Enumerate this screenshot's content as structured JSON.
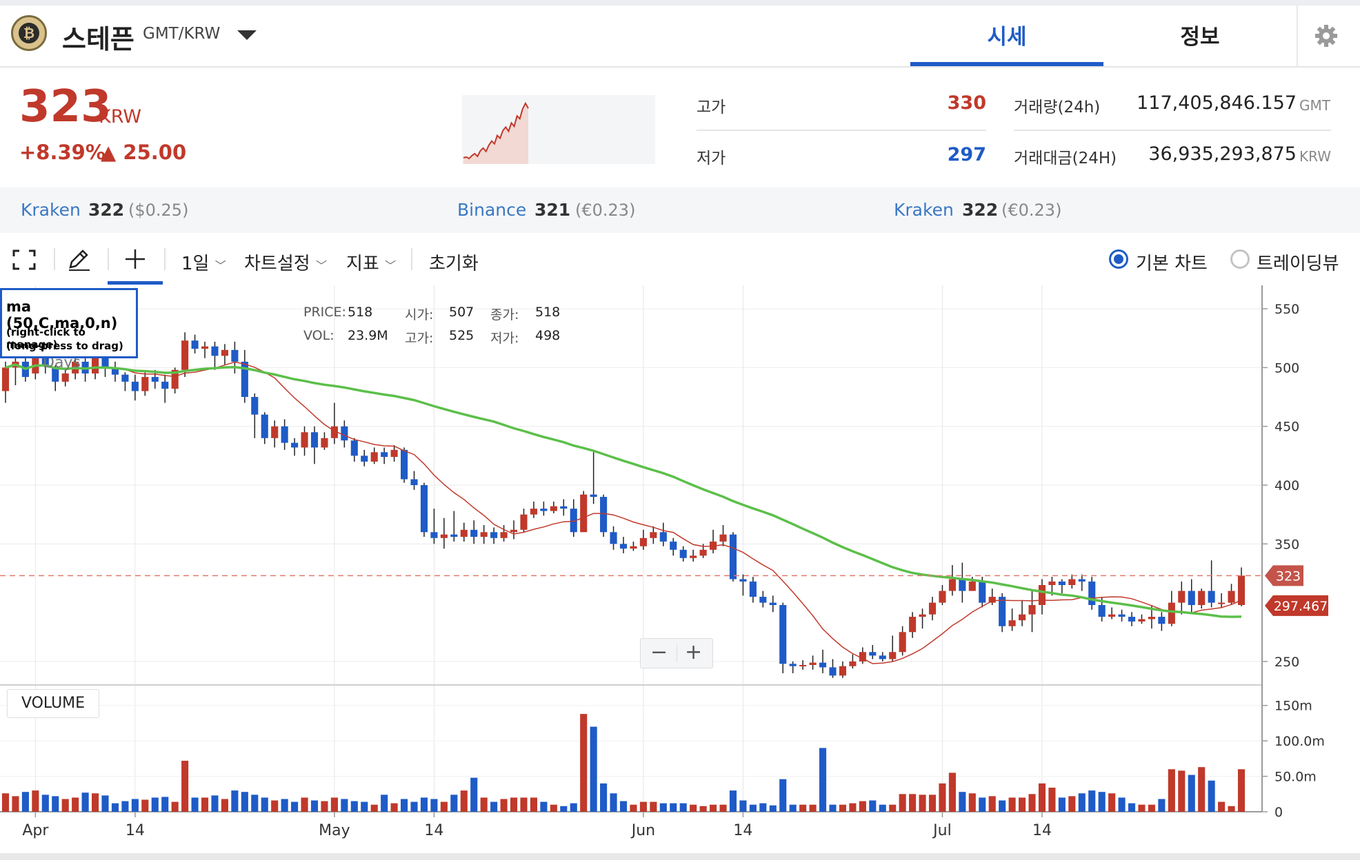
{
  "header": {
    "coin_symbol": "₿",
    "coin_name": "스테픈",
    "pair": "GMT/KRW",
    "tabs": [
      {
        "label": "시세",
        "active": true
      },
      {
        "label": "정보",
        "active": false
      }
    ]
  },
  "price": {
    "value": "323",
    "unit": "KRW",
    "change_pct": "+8.39%",
    "change_abs": "▲ 25.00",
    "mini_series": [
      252,
      253,
      251,
      255,
      258,
      254,
      262,
      266,
      261,
      270,
      276,
      272,
      284,
      280,
      291,
      296,
      290,
      302,
      297,
      312,
      308,
      322,
      330,
      323
    ]
  },
  "stats": {
    "high_label": "고가",
    "high": "330",
    "low_label": "저가",
    "low": "297",
    "volume_label": "거래량(24h)",
    "volume": "117,405,846.157",
    "volume_unit": "GMT",
    "amount_label": "거래대금(24H)",
    "amount": "36,935,293,875",
    "amount_unit": "KRW"
  },
  "exchanges": [
    {
      "name": "Kraken",
      "price": "322",
      "sub": "($0.25)"
    },
    {
      "name": "Binance",
      "price": "321",
      "sub": "(€0.23)"
    },
    {
      "name": "Kraken",
      "price": "322",
      "sub": "(€0.23)"
    }
  ],
  "toolbar": {
    "interval": "1일",
    "chart_settings": "차트설정",
    "indicators": "지표",
    "reset": "초기화",
    "radio_basic": "기본 차트",
    "radio_tv": "트레이딩뷰"
  },
  "tooltip": {
    "title": "ma (50,C,ma,0,n)",
    "line1": "(right-click to manage)",
    "line2": "(long-press to drag)",
    "behind": "Days"
  },
  "ohlc": {
    "price_label": "PRICE:",
    "price": "518",
    "open_label": "시가:",
    "open": "507",
    "close_label": "종가:",
    "close": "518",
    "vol_label": "VOL:",
    "vol": "23.9M",
    "high_label": "고가:",
    "high": "525",
    "low_label": "저가:",
    "low": "498"
  },
  "volume_label": "VOLUME",
  "colors": {
    "up": "#c0392b",
    "down": "#1f5bc7",
    "ma_short": "#c0392b",
    "ma_long": "#5cbf4a",
    "accent": "#1f5bc7"
  },
  "chart_data": {
    "type": "candlestick",
    "x_label_list": [
      "Apr",
      "14",
      "May",
      "14",
      "Jun",
      "14",
      "Jul",
      "14"
    ],
    "x_tick_index": [
      3,
      13,
      33,
      43,
      64,
      74,
      94,
      104
    ],
    "price_ticks": [
      550,
      500,
      450,
      400,
      350,
      250
    ],
    "ylim": [
      230,
      570
    ],
    "volume_ticks": [
      "150m",
      "100.0m",
      "50.0m",
      "0"
    ],
    "volume_tick_values": [
      150,
      100,
      50,
      0
    ],
    "volume_ylim": [
      0,
      175
    ],
    "last_price": 323,
    "last_price_label": "323",
    "ma_value": 297.467,
    "ma_value_label": "297.467",
    "candles": [
      [
        480,
        500,
        505,
        470,
        26
      ],
      [
        500,
        505,
        512,
        485,
        22
      ],
      [
        505,
        492,
        510,
        488,
        28
      ],
      [
        495,
        510,
        515,
        490,
        30
      ],
      [
        510,
        502,
        515,
        495,
        24
      ],
      [
        500,
        488,
        502,
        480,
        22
      ],
      [
        488,
        495,
        500,
        484,
        18
      ],
      [
        495,
        505,
        510,
        490,
        20
      ],
      [
        505,
        495,
        512,
        488,
        27
      ],
      [
        495,
        508,
        512,
        490,
        26
      ],
      [
        508,
        500,
        512,
        492,
        23
      ],
      [
        500,
        494,
        505,
        488,
        12
      ],
      [
        494,
        488,
        496,
        480,
        15
      ],
      [
        488,
        480,
        494,
        472,
        18
      ],
      [
        480,
        492,
        496,
        476,
        17
      ],
      [
        492,
        488,
        498,
        482,
        20
      ],
      [
        488,
        482,
        494,
        470,
        21
      ],
      [
        482,
        498,
        500,
        478,
        14
      ],
      [
        498,
        523,
        530,
        492,
        72
      ],
      [
        523,
        516,
        528,
        512,
        20
      ],
      [
        516,
        518,
        522,
        508,
        20
      ],
      [
        518,
        510,
        522,
        498,
        23
      ],
      [
        510,
        515,
        520,
        502,
        18
      ],
      [
        515,
        505,
        522,
        495,
        30
      ],
      [
        505,
        475,
        515,
        470,
        28
      ],
      [
        475,
        460,
        478,
        440,
        24
      ],
      [
        460,
        440,
        462,
        435,
        20
      ],
      [
        440,
        450,
        455,
        432,
        16
      ],
      [
        450,
        436,
        456,
        430,
        18
      ],
      [
        436,
        432,
        440,
        425,
        14
      ],
      [
        432,
        445,
        450,
        425,
        20
      ],
      [
        445,
        432,
        450,
        418,
        16
      ],
      [
        432,
        440,
        445,
        430,
        15
      ],
      [
        440,
        450,
        470,
        435,
        20
      ],
      [
        450,
        438,
        455,
        432,
        18
      ],
      [
        438,
        425,
        440,
        420,
        15
      ],
      [
        425,
        420,
        430,
        416,
        14
      ],
      [
        420,
        428,
        432,
        418,
        10
      ],
      [
        428,
        424,
        432,
        418,
        24
      ],
      [
        424,
        430,
        434,
        420,
        12
      ],
      [
        430,
        405,
        432,
        402,
        18
      ],
      [
        405,
        400,
        412,
        396,
        14
      ],
      [
        400,
        360,
        402,
        356,
        20
      ],
      [
        360,
        355,
        380,
        350,
        18
      ],
      [
        355,
        358,
        372,
        346,
        14
      ],
      [
        358,
        356,
        378,
        352,
        24
      ],
      [
        356,
        362,
        368,
        352,
        30
      ],
      [
        362,
        356,
        370,
        350,
        48
      ],
      [
        356,
        360,
        366,
        350,
        20
      ],
      [
        360,
        355,
        364,
        350,
        14
      ],
      [
        355,
        360,
        366,
        352,
        18
      ],
      [
        360,
        362,
        370,
        354,
        20
      ],
      [
        362,
        375,
        380,
        360,
        20
      ],
      [
        375,
        380,
        386,
        372,
        20
      ],
      [
        380,
        378,
        386,
        374,
        14
      ],
      [
        378,
        382,
        386,
        376,
        10
      ],
      [
        382,
        380,
        388,
        374,
        8
      ],
      [
        380,
        360,
        388,
        356,
        12
      ],
      [
        360,
        392,
        395,
        362,
        138
      ],
      [
        392,
        390,
        428,
        384,
        120
      ],
      [
        390,
        360,
        392,
        356,
        40
      ],
      [
        360,
        350,
        365,
        345,
        26
      ],
      [
        350,
        346,
        356,
        342,
        15
      ],
      [
        346,
        348,
        352,
        344,
        10
      ],
      [
        348,
        355,
        362,
        345,
        14
      ],
      [
        355,
        360,
        365,
        350,
        14
      ],
      [
        360,
        352,
        368,
        348,
        12
      ],
      [
        352,
        345,
        355,
        340,
        12
      ],
      [
        345,
        338,
        348,
        335,
        12
      ],
      [
        338,
        340,
        345,
        335,
        10
      ],
      [
        340,
        345,
        350,
        338,
        8
      ],
      [
        345,
        352,
        362,
        342,
        10
      ],
      [
        352,
        358,
        366,
        348,
        10
      ],
      [
        358,
        320,
        360,
        318,
        30
      ],
      [
        320,
        318,
        324,
        306,
        16
      ],
      [
        318,
        305,
        322,
        300,
        10
      ],
      [
        305,
        300,
        310,
        296,
        12
      ],
      [
        300,
        298,
        306,
        292,
        9
      ],
      [
        298,
        248,
        300,
        240,
        46
      ],
      [
        248,
        246,
        250,
        240,
        10
      ],
      [
        246,
        247,
        251,
        243,
        10
      ],
      [
        247,
        249,
        255,
        243,
        10
      ],
      [
        249,
        245,
        260,
        240,
        90
      ],
      [
        245,
        238,
        252,
        236,
        10
      ],
      [
        238,
        246,
        250,
        236,
        10
      ],
      [
        246,
        250,
        256,
        244,
        12
      ],
      [
        250,
        258,
        262,
        248,
        15
      ],
      [
        258,
        255,
        264,
        252,
        16
      ],
      [
        255,
        252,
        258,
        250,
        10
      ],
      [
        252,
        258,
        272,
        250,
        10
      ],
      [
        258,
        275,
        280,
        255,
        25
      ],
      [
        275,
        288,
        292,
        270,
        25
      ],
      [
        288,
        290,
        295,
        278,
        24
      ],
      [
        290,
        300,
        305,
        285,
        24
      ],
      [
        300,
        310,
        315,
        298,
        40
      ],
      [
        310,
        320,
        332,
        306,
        55
      ],
      [
        320,
        310,
        334,
        300,
        28
      ],
      [
        310,
        318,
        322,
        310,
        26
      ],
      [
        318,
        300,
        322,
        296,
        20
      ],
      [
        300,
        305,
        312,
        298,
        22
      ],
      [
        305,
        280,
        308,
        275,
        16
      ],
      [
        280,
        285,
        295,
        276,
        20
      ],
      [
        285,
        290,
        302,
        280,
        20
      ],
      [
        290,
        298,
        310,
        275,
        25
      ],
      [
        298,
        315,
        320,
        290,
        40
      ],
      [
        315,
        318,
        322,
        306,
        34
      ],
      [
        318,
        315,
        320,
        308,
        20
      ],
      [
        315,
        320,
        324,
        312,
        22
      ],
      [
        320,
        318,
        324,
        310,
        26
      ],
      [
        318,
        298,
        322,
        294,
        30
      ],
      [
        298,
        288,
        305,
        284,
        28
      ],
      [
        288,
        290,
        296,
        286,
        26
      ],
      [
        290,
        288,
        294,
        284,
        20
      ],
      [
        288,
        284,
        292,
        280,
        12
      ],
      [
        284,
        286,
        290,
        282,
        10
      ],
      [
        286,
        288,
        298,
        278,
        10
      ],
      [
        288,
        282,
        292,
        276,
        18
      ],
      [
        282,
        300,
        310,
        280,
        60
      ],
      [
        300,
        310,
        318,
        290,
        58
      ],
      [
        310,
        298,
        320,
        292,
        52
      ],
      [
        298,
        310,
        312,
        295,
        63
      ],
      [
        310,
        300,
        336,
        296,
        44
      ],
      [
        300,
        300,
        308,
        296,
        14
      ],
      [
        300,
        310,
        316,
        298,
        8
      ],
      [
        298,
        323,
        330,
        297,
        60
      ]
    ]
  }
}
